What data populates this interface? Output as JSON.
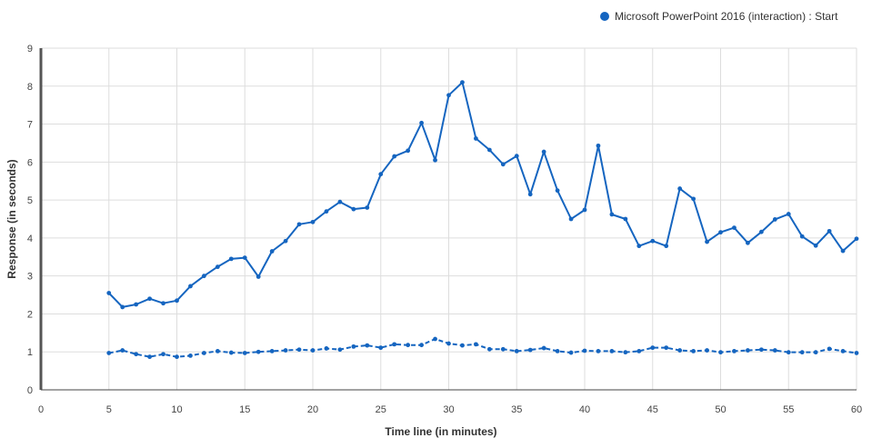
{
  "chart_data": {
    "type": "line",
    "xlabel": "Time line (in minutes)",
    "ylabel": "Response (in seconds)",
    "xlim": [
      0,
      60
    ],
    "ylim": [
      0,
      9
    ],
    "xticks": [
      0,
      5,
      10,
      15,
      20,
      25,
      30,
      35,
      40,
      45,
      50,
      55,
      60
    ],
    "yticks": [
      0,
      1,
      2,
      3,
      4,
      5,
      6,
      7,
      8,
      9
    ],
    "grid": true,
    "legend_position": "top-right",
    "x": [
      5,
      6,
      7,
      8,
      9,
      10,
      11,
      12,
      13,
      14,
      15,
      16,
      17,
      18,
      19,
      20,
      21,
      22,
      23,
      24,
      25,
      26,
      27,
      28,
      29,
      30,
      31,
      32,
      33,
      34,
      35,
      36,
      37,
      38,
      39,
      40,
      41,
      42,
      43,
      44,
      45,
      46,
      47,
      48,
      49,
      50,
      51,
      52,
      53,
      54,
      55,
      56,
      57,
      58,
      59,
      60
    ],
    "series": [
      {
        "name": "Microsoft PowerPoint 2016 (interaction) : Start",
        "color": "#1565c0",
        "style": "solid",
        "values": [
          2.55,
          2.18,
          2.25,
          2.4,
          2.28,
          2.35,
          2.73,
          3.0,
          3.24,
          3.45,
          3.48,
          2.98,
          3.65,
          3.92,
          4.36,
          4.42,
          4.7,
          4.95,
          4.76,
          4.8,
          5.68,
          6.15,
          6.3,
          7.03,
          6.05,
          7.76,
          8.1,
          6.62,
          6.32,
          5.94,
          6.16,
          5.15,
          6.27,
          5.25,
          4.5,
          4.74,
          6.43,
          4.62,
          4.5,
          3.79,
          3.92,
          3.79,
          5.3,
          5.03,
          3.9,
          4.15,
          4.27,
          3.87,
          4.16,
          4.49,
          4.63,
          4.04,
          3.8,
          4.18,
          3.66,
          3.98
        ]
      },
      {
        "name": "",
        "color": "#1565c0",
        "style": "dashed",
        "values": [
          0.97,
          1.04,
          0.94,
          0.87,
          0.94,
          0.87,
          0.9,
          0.97,
          1.02,
          0.98,
          0.97,
          1.0,
          1.02,
          1.04,
          1.06,
          1.04,
          1.09,
          1.06,
          1.14,
          1.17,
          1.11,
          1.2,
          1.18,
          1.18,
          1.34,
          1.22,
          1.17,
          1.2,
          1.07,
          1.07,
          1.02,
          1.05,
          1.1,
          1.02,
          0.98,
          1.03,
          1.02,
          1.02,
          0.99,
          1.02,
          1.11,
          1.11,
          1.04,
          1.02,
          1.04,
          0.99,
          1.02,
          1.04,
          1.06,
          1.04,
          0.99,
          0.99,
          0.99,
          1.08,
          1.02,
          0.97
        ]
      }
    ]
  }
}
